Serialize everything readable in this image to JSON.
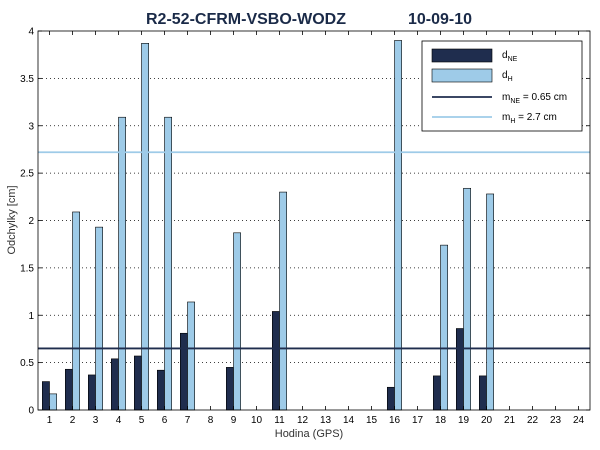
{
  "chart_data": {
    "type": "bar",
    "title_left": "R2-52-CFRM-VSBO-WODZ",
    "title_right": "10-09-10",
    "xlabel": "Hodina (GPS)",
    "ylabel": "Odchylky [cm]",
    "ylim": [
      0,
      4
    ],
    "yticks": [
      "0",
      "0.5",
      "1",
      "1.5",
      "2",
      "2.5",
      "3",
      "3.5",
      "4"
    ],
    "ytick_values": [
      0,
      0.5,
      1,
      1.5,
      2,
      2.5,
      3,
      3.5,
      4
    ],
    "categories": [
      "1",
      "2",
      "3",
      "4",
      "5",
      "6",
      "7",
      "8",
      "9",
      "10",
      "11",
      "12",
      "13",
      "14",
      "15",
      "16",
      "17",
      "18",
      "19",
      "20",
      "21",
      "22",
      "23",
      "24"
    ],
    "grid": true,
    "legend_position": "top-right",
    "series": [
      {
        "name_main": "d",
        "name_sub": "NE",
        "color": "#1f2d4e",
        "values": [
          0.3,
          0.43,
          0.37,
          0.54,
          0.57,
          0.42,
          0.81,
          null,
          0.45,
          null,
          1.04,
          null,
          null,
          null,
          null,
          0.24,
          null,
          0.36,
          0.86,
          0.36,
          null,
          null,
          null,
          null
        ]
      },
      {
        "name_main": "d",
        "name_sub": "H",
        "color": "#9ecbe8",
        "values": [
          0.17,
          2.09,
          1.93,
          3.09,
          3.87,
          3.09,
          1.14,
          null,
          1.87,
          null,
          2.3,
          null,
          null,
          null,
          null,
          3.9,
          null,
          1.74,
          2.34,
          2.28,
          null,
          null,
          null,
          null
        ]
      }
    ],
    "reference_lines": [
      {
        "label_main": "m",
        "label_sub": "NE",
        "label_rest": " = 0.65 cm",
        "value": 0.65,
        "color": "#1f2d4e"
      },
      {
        "label_main": "m",
        "label_sub": "H",
        "label_rest": "  = 2.7 cm",
        "value": 2.72,
        "color": "#9ecbe8"
      }
    ]
  }
}
